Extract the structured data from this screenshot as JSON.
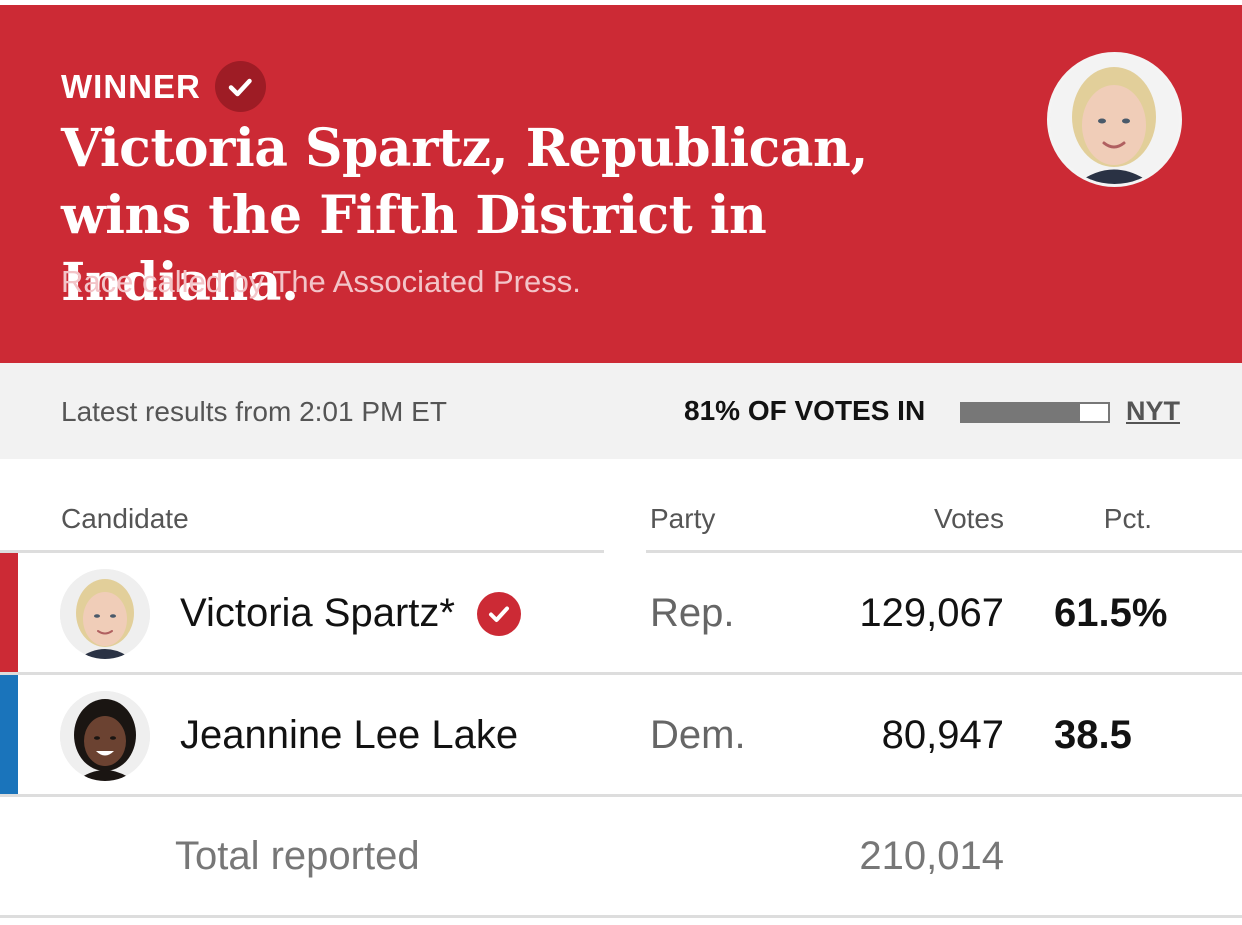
{
  "banner": {
    "winner_label": "WINNER",
    "headline": "Victoria Spartz, Republican, wins the Fifth District in Indiana.",
    "subhead": "Race called by The Associated Press.",
    "background_color": "#cc2a35",
    "photo_icon": "candidate-photo-icon"
  },
  "status": {
    "latest": "Latest results from 2:01 PM ET",
    "votes_in": "81% OF VOTES IN",
    "votes_in_fraction": 0.81,
    "source_link": "NYT"
  },
  "table": {
    "headers": {
      "candidate": "Candidate",
      "party": "Party",
      "votes": "Votes",
      "pct": "Pct."
    },
    "rows": [
      {
        "name": "Victoria Spartz*",
        "winner": true,
        "party": "Rep.",
        "votes": "129,067",
        "pct": "61.5%",
        "party_color": "#cc2a35"
      },
      {
        "name": "Jeannine Lee Lake",
        "winner": false,
        "party": "Dem.",
        "votes": "80,947",
        "pct": "38.5",
        "party_color": "#1a74bb"
      }
    ],
    "total_label": "Total reported",
    "total_votes": "210,014"
  }
}
